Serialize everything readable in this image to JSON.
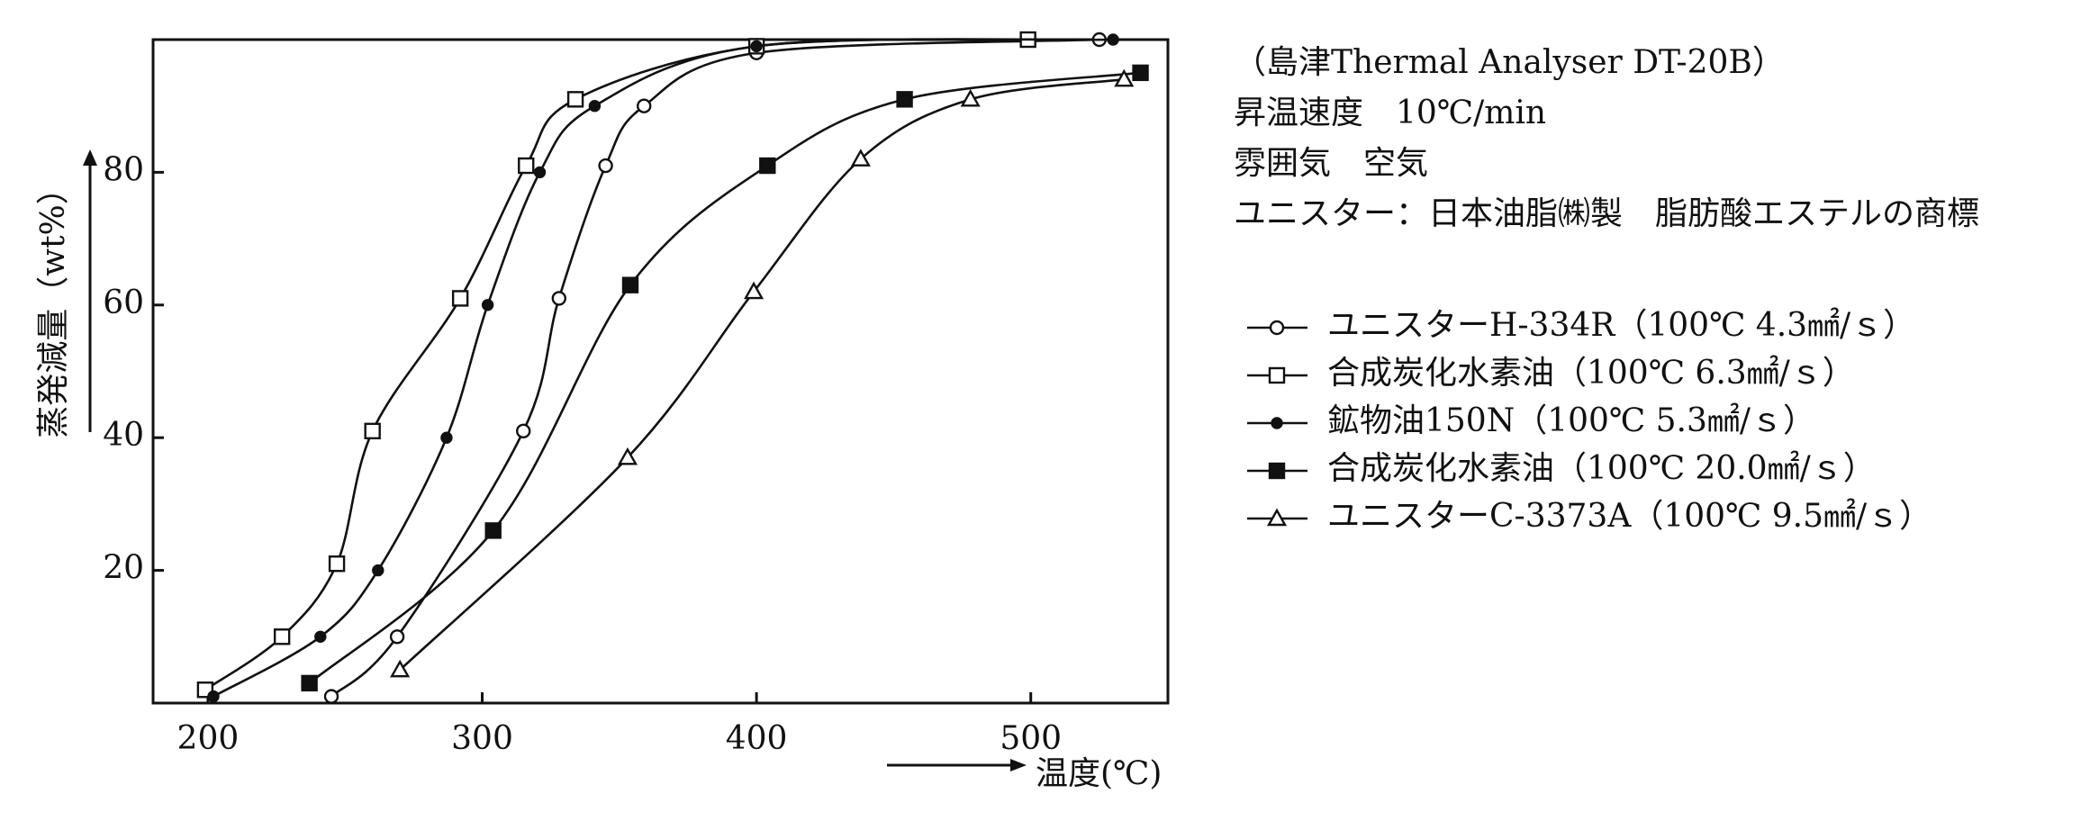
{
  "chart_data": {
    "type": "line",
    "xlabel": "温度(℃)",
    "ylabel": "蒸発減量（wt%）",
    "notes": [
      "（島津Thermal Analyser DT-20B）",
      "昇温速度　10℃/min",
      "雰囲気　空気",
      "ユニスター：日本油脂㈱製　脂肪酸エステルの商標"
    ],
    "xlim": [
      180,
      550
    ],
    "ylim": [
      0,
      100
    ],
    "xticks": [
      200,
      300,
      400,
      500
    ],
    "yticks": [
      20,
      40,
      60,
      80
    ],
    "series": [
      {
        "name": "ユニスターH-334R（100℃ 4.3㎟/ｓ）",
        "color": "#111111",
        "marker": "open-circle",
        "x": [
          245,
          269,
          315,
          328,
          345,
          359,
          400,
          525
        ],
        "values": [
          1,
          10,
          41,
          61,
          81,
          90,
          98,
          100
        ]
      },
      {
        "name": "合成炭化水素油（100℃ 6.3㎟/ｓ）",
        "color": "#111111",
        "marker": "open-square",
        "x": [
          199,
          227,
          247,
          260,
          292,
          316,
          334,
          400,
          499
        ],
        "values": [
          2,
          10,
          21,
          41,
          61,
          81,
          91,
          99,
          100
        ]
      },
      {
        "name": "鉱物油150N（100℃ 5.3㎟/ｓ）",
        "color": "#111111",
        "marker": "filled-circle",
        "x": [
          202,
          241,
          262,
          287,
          302,
          321,
          341,
          400,
          530
        ],
        "values": [
          1,
          10,
          20,
          40,
          60,
          80,
          90,
          99,
          100
        ]
      },
      {
        "name": "合成炭化水素油（100℃ 20.0㎟/ｓ）",
        "color": "#111111",
        "marker": "filled-square",
        "x": [
          237,
          304,
          354,
          404,
          454,
          540
        ],
        "values": [
          3,
          26,
          63,
          81,
          91,
          95
        ]
      },
      {
        "name": "ユニスターC-3373A（100℃ 9.5㎟/ｓ）",
        "color": "#111111",
        "marker": "open-triangle",
        "x": [
          270,
          353,
          399,
          438,
          478,
          534
        ],
        "values": [
          5,
          37,
          62,
          82,
          91,
          94
        ]
      }
    ]
  }
}
